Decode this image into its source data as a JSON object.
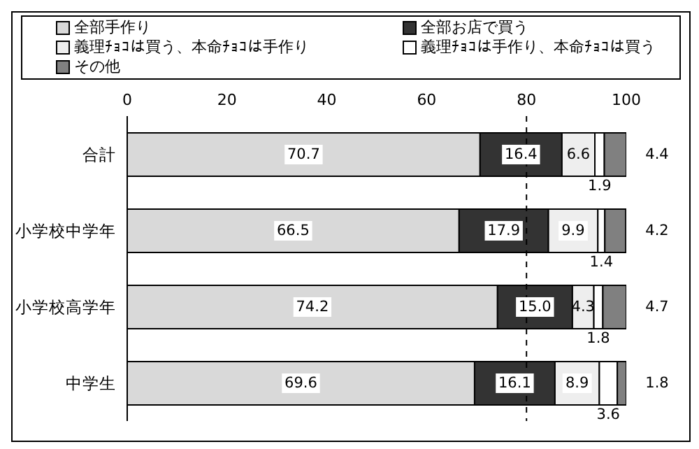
{
  "chart_data": {
    "type": "bar",
    "orientation": "horizontal",
    "stacked": true,
    "categories": [
      "合計",
      "小学校中学年",
      "小学校高学年",
      "中学生"
    ],
    "series": [
      {
        "name": "全部手作り",
        "color": "#d9d9d9",
        "values": [
          70.7,
          66.5,
          74.2,
          69.6
        ],
        "value_labels": [
          "70.7",
          "66.5",
          "74.2",
          "69.6"
        ]
      },
      {
        "name": "全部お店で買う",
        "color": "#333333",
        "values": [
          16.4,
          17.9,
          15.0,
          16.1
        ],
        "value_labels": [
          "16.4",
          "17.9",
          "15.0",
          "16.1"
        ]
      },
      {
        "name": "義理ﾁｮｺは買う、本命ﾁｮｺは手作り",
        "color": "#eeeeee",
        "values": [
          6.6,
          9.9,
          4.3,
          8.9
        ],
        "value_labels": [
          "6.6",
          "9.9",
          "4.3",
          "8.9"
        ]
      },
      {
        "name": "義理ﾁｮｺは手作り、本命ﾁｮｺは買う",
        "color": "#ffffff",
        "values": [
          1.9,
          1.4,
          1.8,
          3.6
        ],
        "value_labels": [
          "1.9",
          "1.4",
          "1.8",
          "3.6"
        ]
      },
      {
        "name": "その他",
        "color": "#808080",
        "values": [
          4.4,
          4.2,
          4.7,
          1.8
        ],
        "value_labels": [
          "4.4",
          "4.2",
          "4.7",
          "1.8"
        ]
      }
    ],
    "xlim": [
      0,
      100
    ],
    "xticks": [
      0,
      20,
      40,
      60,
      80,
      100
    ],
    "legend": "top",
    "ref_lines": [
      {
        "axis": "x",
        "value": 80
      }
    ]
  }
}
